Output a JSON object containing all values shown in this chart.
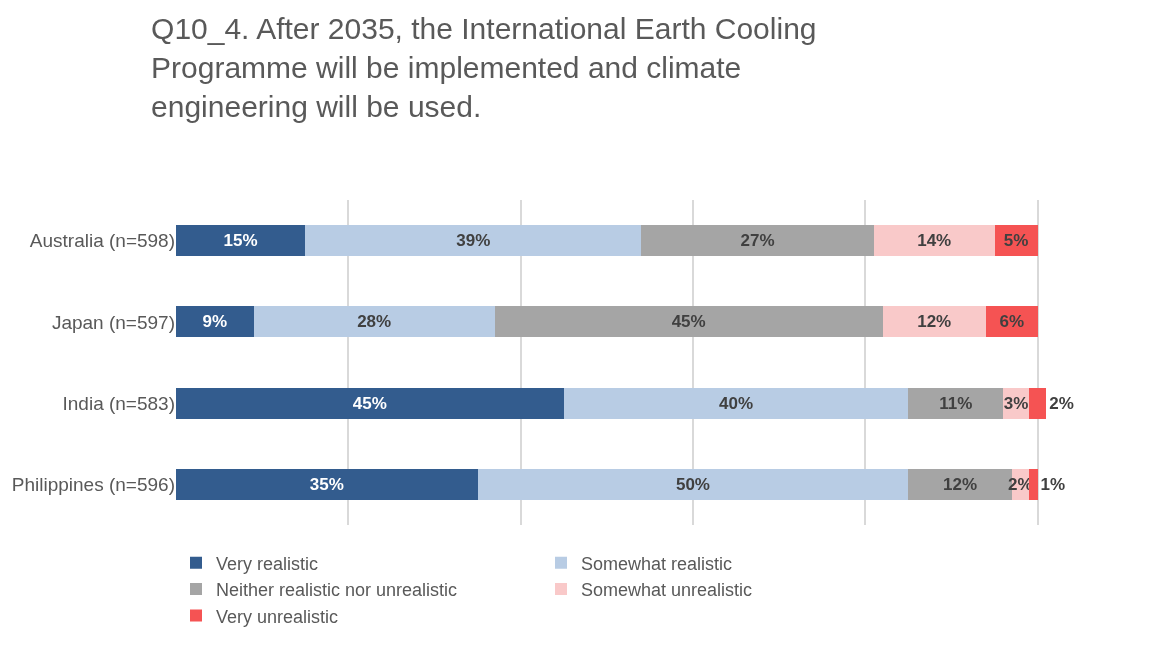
{
  "chart_data": {
    "type": "bar",
    "orientation": "horizontal",
    "stacked": true,
    "title": "Q10_4. After 2035, the International Earth Cooling Programme will be implemented and climate engineering will be used.",
    "categories": [
      "Australia (n=598)",
      "Japan (n=597)",
      "India (n=583)",
      "Philippines (n=596)"
    ],
    "series": [
      {
        "name": "Very realistic",
        "color": "#335c8e",
        "values": [
          15,
          9,
          45,
          35
        ],
        "value_labels": [
          "15%",
          "9%",
          "45%",
          "35%"
        ]
      },
      {
        "name": "Somewhat realistic",
        "color": "#b8cce4",
        "values": [
          39,
          28,
          40,
          50
        ],
        "value_labels": [
          "39%",
          "28%",
          "40%",
          "50%"
        ]
      },
      {
        "name": "Neither realistic nor unrealistic",
        "color": "#a5a5a5",
        "values": [
          27,
          45,
          11,
          12
        ],
        "value_labels": [
          "27%",
          "45%",
          "11%",
          "12%"
        ]
      },
      {
        "name": "Somewhat unrealistic",
        "color": "#f9c9c9",
        "values": [
          14,
          12,
          3,
          2
        ],
        "value_labels": [
          "14%",
          "12%",
          "3%",
          "2%"
        ]
      },
      {
        "name": "Very unrealistic",
        "color": "#f55353",
        "values": [
          5,
          6,
          2,
          1
        ],
        "value_labels": [
          "5%",
          "6%",
          "2%",
          "1%"
        ]
      }
    ],
    "tick_labels": "y",
    "grid": "x",
    "legend": "bottom"
  }
}
